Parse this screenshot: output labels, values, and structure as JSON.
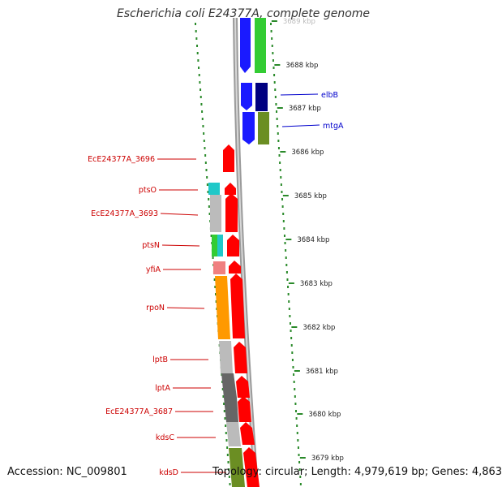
{
  "title": "Escherichia coli E24377A, complete genome",
  "footer": {
    "accession": "Accession: NC_009801",
    "summary": "Topology: circular; Length: 4,979,619 bp; Genes: 4,863"
  },
  "ticks": [
    "3689 kbp",
    "3688 kbp",
    "3687 kbp",
    "3686 kbp",
    "3685 kbp",
    "3684 kbp",
    "3683 kbp",
    "3682 kbp",
    "3681 kbp",
    "3680 kbp",
    "3679 kbp"
  ],
  "right_labels": [
    "elbB",
    "mtgA"
  ],
  "left_labels": [
    "EcE24377A_3696",
    "ptsO",
    "EcE24377A_3693",
    "ptsN",
    "yfiA",
    "rpoN",
    "lptB",
    "lptA",
    "EcE24377A_3687",
    "kdsC",
    "kdsD"
  ],
  "colors": {
    "forward_cds": "#ff0000",
    "reverse_cds": "#0000ff",
    "left_label": "#cc0000",
    "right_label": "#0000cc",
    "tick_dots": "#2a8a2a",
    "backbone": "#888888"
  }
}
